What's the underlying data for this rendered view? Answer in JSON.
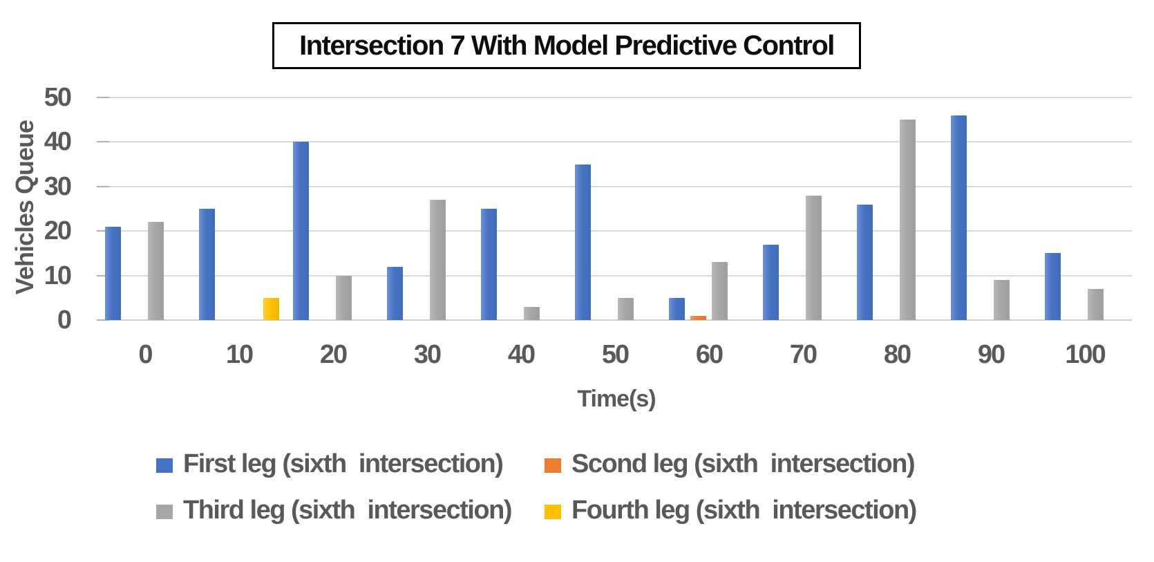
{
  "chart_data": {
    "type": "bar",
    "title": "Intersection 7 With Model Predictive Control",
    "xlabel": "Time(s)",
    "ylabel": "Vehicles Queue",
    "categories": [
      "0",
      "10",
      "20",
      "30",
      "40",
      "50",
      "60",
      "70",
      "80",
      "90",
      "100"
    ],
    "ylim": [
      0,
      50
    ],
    "yticks": [
      0,
      10,
      20,
      30,
      40,
      50
    ],
    "grid": true,
    "legend_position": "bottom",
    "series": [
      {
        "name": "First leg (sixth  intersection)",
        "color": "#4472C4",
        "values": [
          21,
          25,
          40,
          12,
          25,
          35,
          5,
          17,
          26,
          46,
          15
        ]
      },
      {
        "name": "Scond leg (sixth  intersection)",
        "color": "#ED7D31",
        "values": [
          0,
          0,
          0,
          0,
          0,
          0,
          1,
          0,
          0,
          0,
          0
        ]
      },
      {
        "name": "Third leg (sixth  intersection)",
        "color": "#A6A6A6",
        "values": [
          22,
          0,
          10,
          27,
          3,
          5,
          13,
          28,
          45,
          9,
          7
        ]
      },
      {
        "name": "Fourth leg (sixth  intersection)",
        "color": "#FFC000",
        "values": [
          0,
          5,
          0,
          0,
          0,
          0,
          0,
          0,
          0,
          0,
          0
        ]
      }
    ]
  }
}
